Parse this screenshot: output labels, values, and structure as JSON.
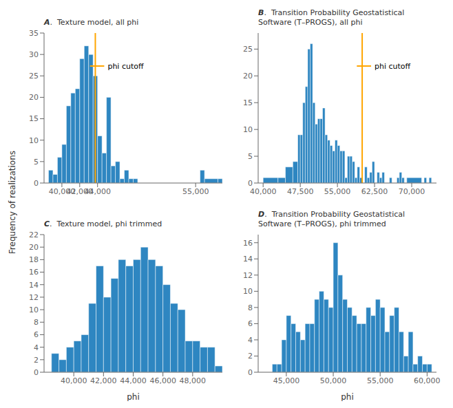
{
  "ylabel": "Frequency of realizations",
  "chart_data": [
    {
      "type": "histogram",
      "title": "A.  Texture model, all phi",
      "bins": [
        38500,
        39000,
        39500,
        40000,
        40500,
        41000,
        41500,
        42000,
        42500,
        43000,
        43500,
        44000,
        44500,
        45000,
        45500,
        46000,
        46500,
        47000,
        47500,
        48000,
        48500,
        49000,
        49500,
        50000,
        50500,
        51000,
        51500,
        52000,
        55500,
        56000,
        57500,
        58000
      ],
      "values": [
        3,
        2,
        6,
        9,
        18,
        21,
        22,
        29,
        32,
        30,
        25,
        11,
        7,
        20,
        4,
        5,
        1,
        3,
        1,
        1,
        0,
        0,
        0,
        0,
        0,
        0,
        0,
        0,
        3,
        1,
        1
      ],
      "color": "#2E86C1",
      "xlim": [
        38000,
        58000
      ],
      "xticks": [
        {
          "value": 40000,
          "label": "40,000"
        },
        {
          "value": 42000,
          "label": "42,000"
        },
        {
          "value": 44000,
          "label": "44,000"
        },
        {
          "value": 55000,
          "label": "55,000"
        }
      ],
      "ylim": [
        0,
        35
      ],
      "yticks": [
        0,
        5,
        10,
        15,
        20,
        25,
        30,
        35
      ],
      "grid": false,
      "annotations": [
        {
          "x": 43750,
          "text": "phi cutoff",
          "color": "#FFA500"
        }
      ]
    },
    {
      "type": "histogram",
      "title": "B.  Transition Probability Geostatistical\nSoftware (T–PROGS), all phi",
      "bins": [
        40000,
        43000,
        44500,
        46000,
        47000,
        47500,
        48000,
        48500,
        49000,
        49500,
        50000,
        50500,
        51000,
        51500,
        52000,
        52500,
        53000,
        53500,
        54000,
        54500,
        55000,
        55500,
        56000,
        56500,
        57000,
        57500,
        58000,
        58500,
        59000,
        59500,
        60000,
        60500,
        61000,
        61500,
        62000,
        62500,
        63000,
        63500,
        64000,
        64500,
        65000,
        65500,
        66000,
        66500,
        67000,
        67500,
        68000,
        68500,
        69000,
        72000,
        72500,
        73000,
        73500,
        74000
      ],
      "values": [
        1,
        1,
        3,
        4,
        9,
        9,
        15,
        18,
        25,
        26,
        15,
        11,
        12,
        12,
        14,
        9,
        8,
        7,
        6,
        8,
        7,
        6,
        6,
        1,
        5,
        5,
        4,
        1,
        3,
        1,
        0,
        3,
        1,
        2,
        4,
        0,
        2,
        1,
        2,
        0,
        0,
        1,
        0,
        0,
        1,
        2,
        1,
        0,
        1,
        0,
        1,
        0,
        1
      ],
      "color": "#2E86C1",
      "xlim": [
        39000,
        75000
      ],
      "xticks": [
        {
          "value": 40000,
          "label": "40,000"
        },
        {
          "value": 47500,
          "label": "47,500"
        },
        {
          "value": 55000,
          "label": "55,000"
        },
        {
          "value": 62500,
          "label": "62,500"
        },
        {
          "value": 70000,
          "label": "70,000"
        }
      ],
      "ylim": [
        0,
        28
      ],
      "yticks": [
        0,
        5,
        10,
        15,
        20,
        25
      ],
      "grid": false,
      "annotations": [
        {
          "x": 60000,
          "text": "phi cutoff",
          "color": "#FFA500"
        }
      ]
    },
    {
      "type": "histogram",
      "title": "C.  Texture model, phi trimmed",
      "xlabel": "phi",
      "bins": [
        38500,
        39000,
        39500,
        40000,
        40500,
        41000,
        41500,
        42000,
        42500,
        43000,
        43500,
        44000,
        44500,
        45000,
        45500,
        46000,
        46500,
        47000,
        47500,
        48000,
        48500,
        49000,
        49500,
        50000
      ],
      "values": [
        3,
        2,
        4,
        5,
        6,
        11,
        17,
        12,
        15,
        18,
        17,
        18,
        20,
        18,
        17,
        14,
        11,
        10,
        5,
        5,
        4,
        4,
        1
      ],
      "color": "#2E86C1",
      "xlim": [
        38000,
        50000
      ],
      "xticks": [
        {
          "value": 40000,
          "label": "40,000"
        },
        {
          "value": 42000,
          "label": "42,000"
        },
        {
          "value": 44000,
          "label": "44,000"
        },
        {
          "value": 46000,
          "label": "46,000"
        },
        {
          "value": 48000,
          "label": "48,000"
        }
      ],
      "ylim": [
        0,
        22
      ],
      "yticks": [
        0,
        2,
        4,
        6,
        8,
        10,
        12,
        14,
        16,
        18,
        20,
        22
      ],
      "grid": false
    },
    {
      "type": "histogram",
      "title": "D.  Transition Probability Geostatistical\nSoftware (T–PROGS), phi trimmed",
      "xlabel": "phi",
      "bins": [
        43500,
        44000,
        44500,
        45000,
        45500,
        46000,
        46500,
        47000,
        47500,
        48000,
        48500,
        49000,
        49500,
        50000,
        50500,
        51000,
        51500,
        52000,
        52500,
        53000,
        53500,
        54000,
        54500,
        55000,
        55500,
        56000,
        56500,
        57000,
        57500,
        58000,
        58500,
        59000,
        59500,
        60000,
        60500
      ],
      "values": [
        1,
        1,
        4,
        7,
        6,
        5,
        4,
        6,
        6,
        9,
        10,
        9,
        8,
        16,
        12,
        9,
        8,
        7,
        6,
        6,
        8,
        7,
        9,
        8,
        5,
        7,
        8,
        5,
        2,
        5,
        1,
        2,
        1,
        1
      ],
      "color": "#2E86C1",
      "xlim": [
        42000,
        61000
      ],
      "xticks": [
        {
          "value": 45000,
          "label": "45,000"
        },
        {
          "value": 50000,
          "label": "50,000"
        },
        {
          "value": 55000,
          "label": "55,000"
        },
        {
          "value": 60000,
          "label": "60,000"
        }
      ],
      "ylim": [
        0,
        17
      ],
      "yticks": [
        0,
        2,
        4,
        6,
        8,
        10,
        12,
        14,
        16
      ],
      "grid": false
    }
  ]
}
